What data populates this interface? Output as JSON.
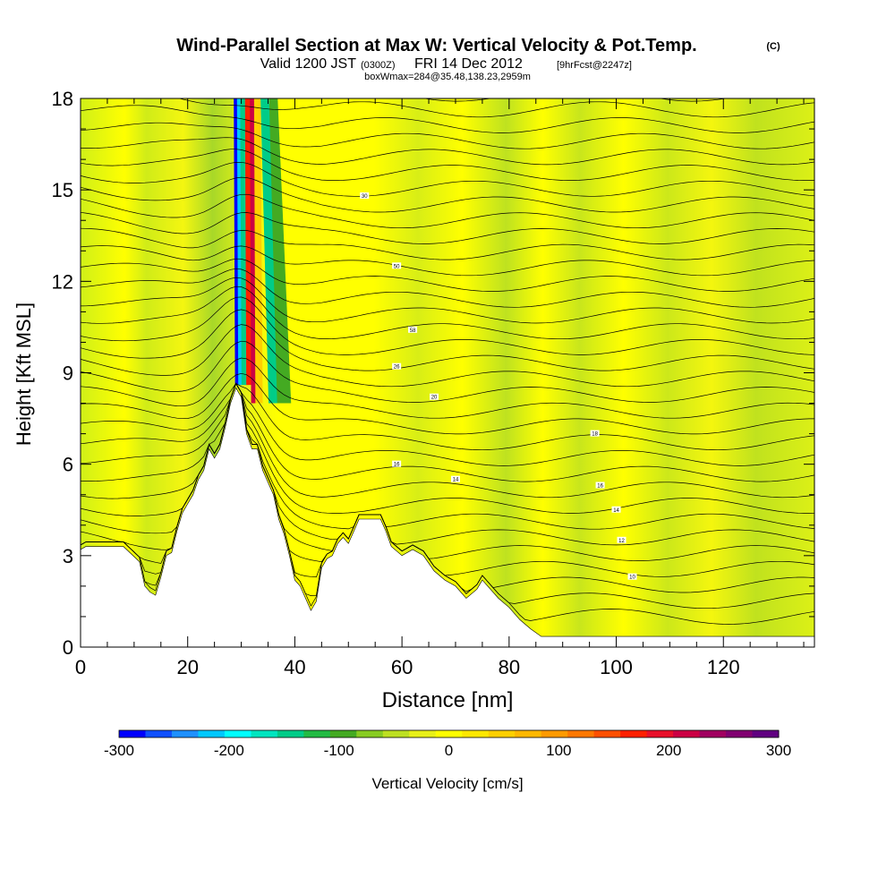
{
  "header": {
    "title": "Wind-Parallel Section at Max W: Vertical Velocity & Pot.Temp.",
    "copyright_mark": "(C)",
    "valid_prefix": "Valid 1200 JST",
    "valid_zulu": "(0300Z)",
    "valid_date": "FRI 14 Dec 2012",
    "forecast_tag": "[9hrFcst@2247z]",
    "box_info": "boxWmax=284@35.48,138.23,2959m"
  },
  "chart_data": {
    "type": "heatmap",
    "xlabel": "Distance [nm]",
    "ylabel": "Height [Kft MSL]",
    "xlim": [
      0,
      137
    ],
    "ylim": [
      0,
      18
    ],
    "x_ticks": [
      0,
      20,
      40,
      60,
      80,
      100,
      120
    ],
    "x_tick_labels": [
      "0",
      "20",
      "40",
      "60",
      "80",
      "100",
      "120"
    ],
    "y_ticks": [
      0,
      3,
      6,
      9,
      12,
      15,
      18
    ],
    "y_tick_labels": [
      "0",
      "3",
      "6",
      "9",
      "12",
      "15",
      "18"
    ],
    "colorbar": {
      "label": "Vertical Velocity [cm/s]",
      "min": -300,
      "max": 300,
      "tick_values": [
        -300,
        -200,
        -100,
        0,
        100,
        200,
        300
      ],
      "tick_labels": [
        "-300",
        "-200",
        "-100",
        "0",
        "100",
        "200",
        "300"
      ],
      "colors": [
        "#0000ff",
        "#1050ff",
        "#1e90ff",
        "#00c8ff",
        "#00ffff",
        "#00e5c0",
        "#00cc88",
        "#22bb44",
        "#44aa22",
        "#88cc22",
        "#bde022",
        "#e8f018",
        "#ffff00",
        "#ffe800",
        "#ffd000",
        "#ffb800",
        "#ff9a00",
        "#ff7800",
        "#ff5000",
        "#ff2000",
        "#e8102a",
        "#cc0044",
        "#a00060",
        "#800070",
        "#600080"
      ]
    },
    "terrain_kft": [
      [
        0,
        3.2
      ],
      [
        1,
        3.3
      ],
      [
        4,
        3.3
      ],
      [
        8,
        3.3
      ],
      [
        11,
        2.8
      ],
      [
        12,
        2.0
      ],
      [
        13,
        1.8
      ],
      [
        14,
        1.7
      ],
      [
        15,
        2.3
      ],
      [
        16,
        3.0
      ],
      [
        17,
        3.1
      ],
      [
        18,
        3.8
      ],
      [
        19,
        4.4
      ],
      [
        20,
        4.7
      ],
      [
        21,
        5.0
      ],
      [
        22,
        5.5
      ],
      [
        23,
        5.8
      ],
      [
        24,
        6.5
      ],
      [
        25,
        6.2
      ],
      [
        26,
        6.5
      ],
      [
        27,
        7.2
      ],
      [
        28,
        8.0
      ],
      [
        29,
        8.5
      ],
      [
        30,
        8.2
      ],
      [
        31,
        7.0
      ],
      [
        32,
        6.5
      ],
      [
        33,
        6.5
      ],
      [
        34,
        5.8
      ],
      [
        35,
        5.4
      ],
      [
        36,
        5.0
      ],
      [
        37,
        4.2
      ],
      [
        38,
        3.7
      ],
      [
        39,
        3.0
      ],
      [
        40,
        2.2
      ],
      [
        41,
        2.0
      ],
      [
        42,
        1.6
      ],
      [
        43,
        1.2
      ],
      [
        44,
        1.5
      ],
      [
        45,
        2.6
      ],
      [
        46,
        2.9
      ],
      [
        47,
        3.0
      ],
      [
        48,
        3.4
      ],
      [
        49,
        3.6
      ],
      [
        50,
        3.4
      ],
      [
        51,
        3.8
      ],
      [
        52,
        4.2
      ],
      [
        56,
        4.2
      ],
      [
        57,
        3.8
      ],
      [
        58,
        3.3
      ],
      [
        60,
        3.0
      ],
      [
        62,
        3.2
      ],
      [
        64,
        3.0
      ],
      [
        66,
        2.5
      ],
      [
        68,
        2.2
      ],
      [
        70,
        2.0
      ],
      [
        72,
        1.6
      ],
      [
        74,
        1.9
      ],
      [
        75,
        2.2
      ],
      [
        76,
        2.0
      ],
      [
        77,
        1.8
      ],
      [
        78,
        1.6
      ],
      [
        80,
        1.3
      ],
      [
        82,
        0.9
      ],
      [
        84,
        0.6
      ],
      [
        86,
        0.35
      ],
      [
        137,
        0.35
      ]
    ],
    "updraft_core_x": 31,
    "isentrope_labels": [
      [
        "30",
        53,
        14.8
      ],
      [
        "50",
        59,
        12.5
      ],
      [
        "58",
        62,
        10.4
      ],
      [
        "26",
        59,
        9.2
      ],
      [
        "20",
        66,
        8.2
      ],
      [
        "16",
        59,
        6.0
      ],
      [
        "14",
        70,
        5.5
      ],
      [
        "18",
        96,
        7.0
      ],
      [
        "16",
        97,
        5.3
      ],
      [
        "14",
        100,
        4.5
      ],
      [
        "12",
        101,
        3.5
      ],
      [
        "10",
        103,
        2.3
      ]
    ]
  }
}
